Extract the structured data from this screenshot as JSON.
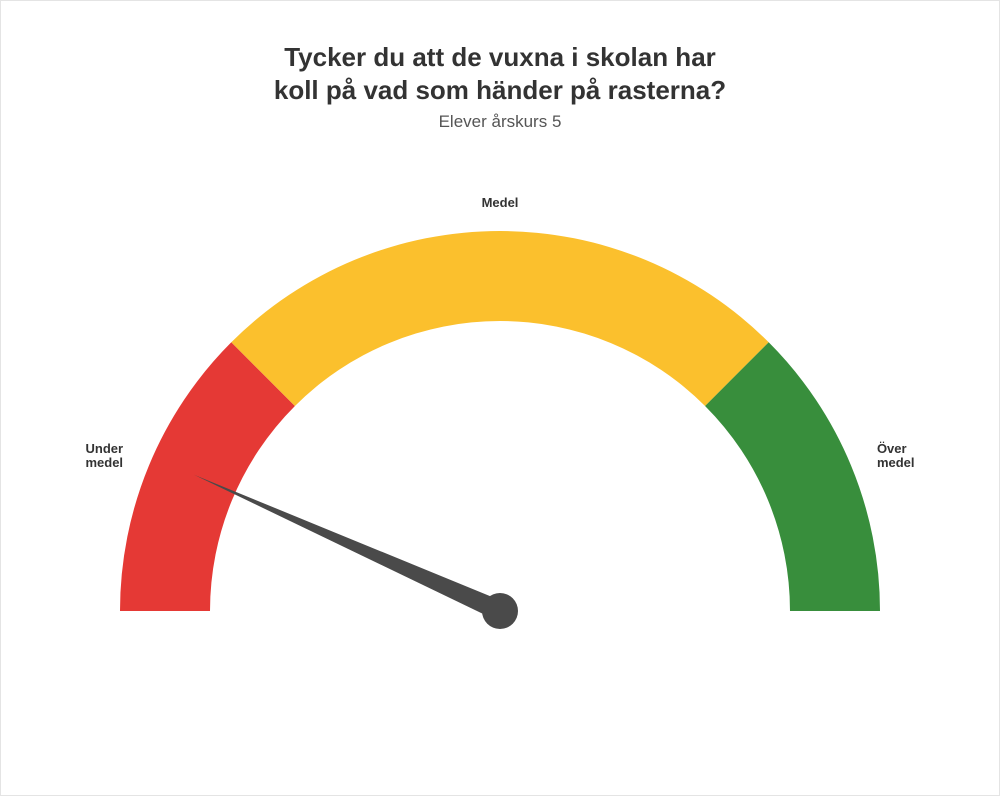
{
  "chart": {
    "type": "gauge",
    "title_line1": "Tycker du att de vuxna i skolan har",
    "title_line2": "koll på vad som händer på rasterna?",
    "title_fontsize": 26,
    "title_color": "#333333",
    "subtitle": "Elever årskurs 5",
    "subtitle_fontsize": 17,
    "subtitle_color": "#555555",
    "background_color": "#ffffff",
    "border_color": "#e4e4e4",
    "segments": [
      {
        "label_line1": "Under",
        "label_line2": "medel",
        "start_deg": 180,
        "end_deg": 135,
        "color": "#e53935"
      },
      {
        "label_line1": "Medel",
        "label_line2": "",
        "start_deg": 135,
        "end_deg": 45,
        "color": "#fbc02d"
      },
      {
        "label_line1": "Över",
        "label_line2": "medel",
        "start_deg": 45,
        "end_deg": 0,
        "color": "#388e3c"
      }
    ],
    "outer_radius": 380,
    "inner_radius": 290,
    "needle": {
      "angle_deg": 156,
      "length": 335,
      "color": "#4a4a4a",
      "base_radius": 18,
      "half_width": 10
    },
    "label_fontsize": 13,
    "label_color": "#333333",
    "label_offset": 28
  }
}
